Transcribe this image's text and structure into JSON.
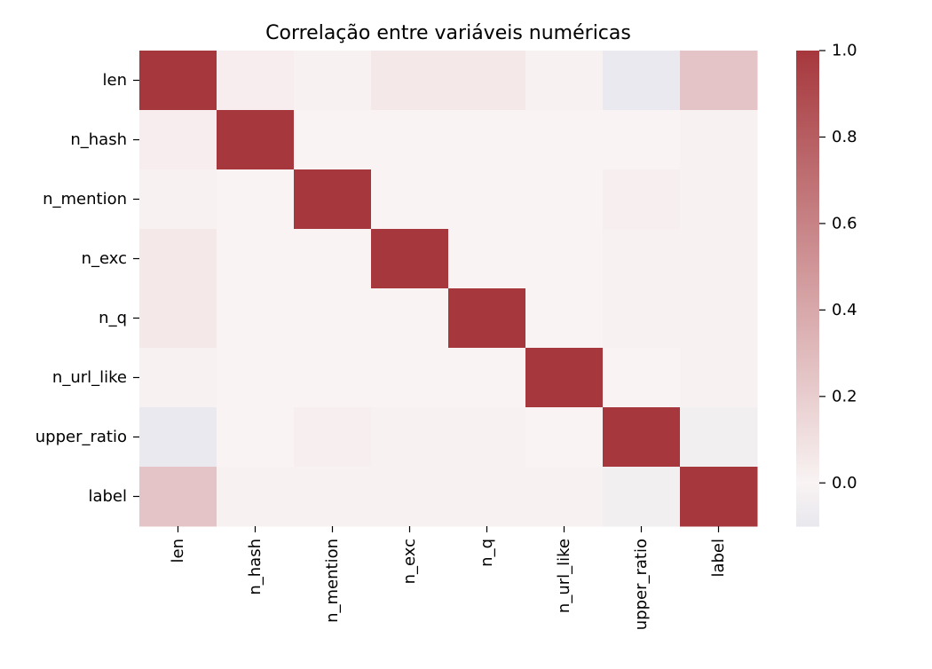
{
  "chart_data": {
    "type": "heatmap",
    "title": "Correlação entre variáveis numéricas",
    "xlabel": "",
    "ylabel": "",
    "rows": [
      "len",
      "n_hash",
      "n_mention",
      "n_exc",
      "n_q",
      "n_url_like",
      "upper_ratio",
      "label"
    ],
    "columns": [
      "len",
      "n_hash",
      "n_mention",
      "n_exc",
      "n_q",
      "n_url_like",
      "upper_ratio",
      "label"
    ],
    "values": [
      [
        1.0,
        0.03,
        0.01,
        0.06,
        0.06,
        0.01,
        -0.09,
        0.25
      ],
      [
        0.03,
        1.0,
        0.0,
        0.0,
        0.0,
        0.0,
        0.0,
        0.01
      ],
      [
        0.01,
        0.0,
        1.0,
        0.0,
        0.0,
        0.0,
        0.02,
        0.01
      ],
      [
        0.06,
        0.0,
        0.0,
        1.0,
        0.0,
        0.0,
        0.01,
        0.01
      ],
      [
        0.06,
        0.0,
        0.0,
        0.0,
        1.0,
        0.0,
        0.01,
        0.01
      ],
      [
        0.01,
        0.0,
        0.0,
        0.0,
        0.0,
        1.0,
        0.0,
        0.01
      ],
      [
        -0.09,
        0.0,
        0.02,
        0.01,
        0.01,
        0.0,
        1.0,
        -0.04
      ],
      [
        0.25,
        0.01,
        0.01,
        0.01,
        0.01,
        0.01,
        -0.04,
        1.0
      ]
    ],
    "colorbar": {
      "min": -0.1,
      "max": 1.0,
      "ticks": [
        0.0,
        0.2,
        0.4,
        0.6,
        0.8,
        1.0
      ],
      "tick_labels": [
        "0.0",
        "0.2",
        "0.4",
        "0.6",
        "0.8",
        "1.0"
      ]
    },
    "colormap": {
      "low": "#e8e8ee",
      "mid": "#f9f3f3",
      "high": "#a6383d",
      "mid_value": 0.0
    }
  }
}
